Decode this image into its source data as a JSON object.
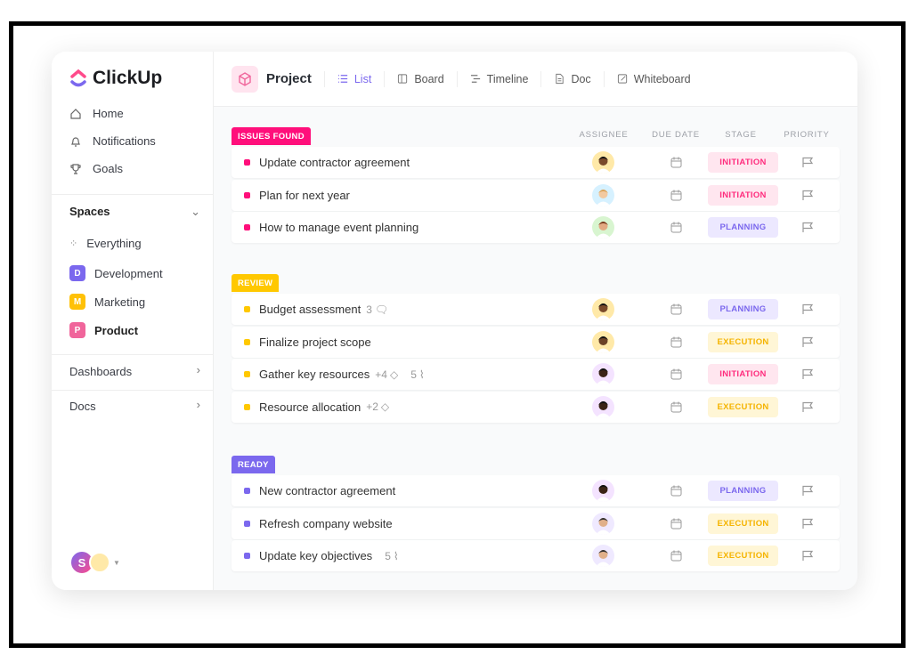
{
  "brand": "ClickUp",
  "sidebar": {
    "nav": [
      {
        "label": "Home",
        "icon": "home-icon"
      },
      {
        "label": "Notifications",
        "icon": "bell-icon"
      },
      {
        "label": "Goals",
        "icon": "trophy-icon"
      }
    ],
    "spaces_title": "Spaces",
    "everything": "Everything",
    "spaces": [
      {
        "letter": "D",
        "label": "Development",
        "color": "#7b68ee"
      },
      {
        "letter": "M",
        "label": "Marketing",
        "color": "#ffc107"
      },
      {
        "letter": "P",
        "label": "Product",
        "color": "#f0659b"
      }
    ],
    "dashboards": "Dashboards",
    "docs": "Docs",
    "user_initial": "S"
  },
  "header": {
    "title": "Project",
    "tabs": [
      {
        "label": "List",
        "icon": "list-icon"
      },
      {
        "label": "Board",
        "icon": "board-icon"
      },
      {
        "label": "Timeline",
        "icon": "timeline-icon"
      },
      {
        "label": "Doc",
        "icon": "doc-icon"
      },
      {
        "label": "Whiteboard",
        "icon": "whiteboard-icon"
      }
    ]
  },
  "columns": [
    "ASSIGNEE",
    "DUE DATE",
    "STAGE",
    "PRIORITY"
  ],
  "groups": [
    {
      "label": "ISSUES FOUND",
      "color": "#ff0f7b",
      "tasks": [
        {
          "name": "Update contractor agreement",
          "stage": "INITIATION"
        },
        {
          "name": "Plan for next year",
          "stage": "INITIATION"
        },
        {
          "name": "How to manage event planning",
          "stage": "PLANNING"
        }
      ]
    },
    {
      "label": "REVIEW",
      "color": "#ffc800",
      "tasks": [
        {
          "name": "Budget assessment",
          "comments": "3",
          "stage": "PLANNING"
        },
        {
          "name": "Finalize project scope",
          "stage": "EXECUTION"
        },
        {
          "name": "Gather key resources",
          "tags": "+4",
          "attachments": "5",
          "stage": "INITIATION"
        },
        {
          "name": "Resource allocation",
          "tags": "+2",
          "stage": "EXECUTION"
        }
      ]
    },
    {
      "label": "READY",
      "color": "#7b68ee",
      "tasks": [
        {
          "name": "New contractor agreement",
          "stage": "PLANNING"
        },
        {
          "name": "Refresh company website",
          "stage": "EXECUTION"
        },
        {
          "name": "Update key objectives",
          "attachments": "5",
          "stage": "EXECUTION"
        }
      ]
    }
  ],
  "stage_colors": {
    "INITIATION": [
      "#ffe6ef",
      "#ff2d7e"
    ],
    "PLANNING": [
      "#ece8ff",
      "#7b68ee"
    ],
    "EXECUTION": [
      "#fff6d6",
      "#f5b400"
    ]
  }
}
